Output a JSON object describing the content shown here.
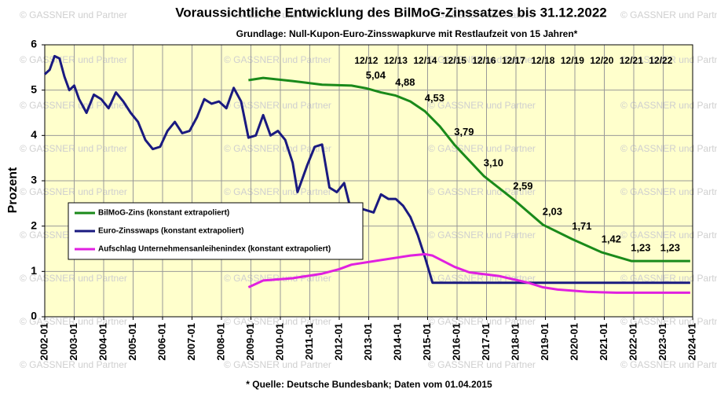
{
  "chart_data": {
    "type": "line",
    "title": "Voraussichtliche Entwicklung des BilMoG-Zinssatzes bis 31.12.2022",
    "subtitle": "Grundlage: Null-Kupon-Euro-Zinsswapkurve mit Restlaufzeit von 15 Jahren*",
    "ylabel": "Prozent",
    "footnote": "* Quelle: Deutsche Bundesbank; Daten vom 01.04.2015",
    "watermark": "© GASSNER und Partner",
    "xlim": [
      "2002-01",
      "2024-01"
    ],
    "xticks": [
      "2002-01",
      "2003-01",
      "2004-01",
      "2005-01",
      "2006-01",
      "2007-01",
      "2008-01",
      "2009-01",
      "2010-01",
      "2011-01",
      "2012-01",
      "2013-01",
      "2014-01",
      "2015-01",
      "2016-01",
      "2017-01",
      "2018-01",
      "2019-01",
      "2020-01",
      "2021-01",
      "2022-01",
      "2023-01",
      "2024-01"
    ],
    "ylim": [
      0,
      6
    ],
    "yticks": [
      0,
      1,
      2,
      3,
      4,
      5,
      6
    ],
    "grid": true,
    "legend": "middle-left",
    "series": [
      {
        "name": "BilMoG-Zins (konstant extrapoliert)",
        "color": "#1a8a1a",
        "x": [
          "2008-12",
          "2009-06",
          "2010-06",
          "2011-06",
          "2012-06",
          "2012-12",
          "2013-06",
          "2013-12",
          "2014-06",
          "2014-12",
          "2015-06",
          "2015-12",
          "2016-12",
          "2017-12",
          "2018-12",
          "2019-12",
          "2020-12",
          "2021-12",
          "2022-12",
          "2023-12"
        ],
        "values": [
          5.22,
          5.27,
          5.2,
          5.12,
          5.1,
          5.04,
          4.95,
          4.88,
          4.75,
          4.53,
          4.2,
          3.79,
          3.1,
          2.59,
          2.03,
          1.71,
          1.42,
          1.23,
          1.23,
          1.23
        ],
        "value_labels": [
          null,
          null,
          null,
          null,
          null,
          "5,04",
          null,
          "4,88",
          null,
          "4,53",
          null,
          "3,79",
          "3,10",
          "2,59",
          "2,03",
          "1,71",
          "1,42",
          "1,23",
          "1,23",
          null
        ]
      },
      {
        "name": "Euro-Zinsswaps (konstant extrapoliert)",
        "color": "#1a1a80",
        "x": [
          "2002-01",
          "2002-03",
          "2002-05",
          "2002-07",
          "2002-09",
          "2002-11",
          "2003-01",
          "2003-03",
          "2003-06",
          "2003-09",
          "2003-12",
          "2004-03",
          "2004-06",
          "2004-09",
          "2004-12",
          "2005-03",
          "2005-06",
          "2005-09",
          "2005-12",
          "2006-03",
          "2006-06",
          "2006-09",
          "2006-12",
          "2007-03",
          "2007-06",
          "2007-09",
          "2007-12",
          "2008-03",
          "2008-06",
          "2008-09",
          "2008-12",
          "2009-03",
          "2009-06",
          "2009-09",
          "2009-12",
          "2010-03",
          "2010-06",
          "2010-08",
          "2010-12",
          "2011-03",
          "2011-06",
          "2011-09",
          "2011-12",
          "2012-03",
          "2012-06",
          "2012-09",
          "2012-12",
          "2013-03",
          "2013-06",
          "2013-09",
          "2013-12",
          "2014-03",
          "2014-06",
          "2014-09",
          "2014-12",
          "2015-03",
          "2023-12"
        ],
        "values": [
          5.35,
          5.45,
          5.75,
          5.7,
          5.3,
          5.0,
          5.1,
          4.8,
          4.5,
          4.9,
          4.8,
          4.6,
          4.95,
          4.75,
          4.5,
          4.3,
          3.9,
          3.7,
          3.75,
          4.1,
          4.3,
          4.05,
          4.1,
          4.4,
          4.8,
          4.7,
          4.75,
          4.6,
          5.05,
          4.75,
          3.95,
          4.0,
          4.45,
          4.0,
          4.1,
          3.9,
          3.4,
          2.75,
          3.35,
          3.75,
          3.8,
          2.85,
          2.75,
          2.95,
          2.3,
          2.4,
          2.35,
          2.3,
          2.7,
          2.6,
          2.6,
          2.45,
          2.2,
          1.8,
          1.3,
          0.75,
          0.75
        ]
      },
      {
        "name": "Aufschlag Unternehmensanleihenindex (konstant extrapoliert)",
        "color": "#e020e0",
        "x": [
          "2008-12",
          "2009-06",
          "2010-06",
          "2011-06",
          "2012-01",
          "2012-06",
          "2013-06",
          "2014-06",
          "2014-12",
          "2015-03",
          "2015-12",
          "2016-06",
          "2017-06",
          "2018-06",
          "2018-12",
          "2019-06",
          "2020-06",
          "2021-06",
          "2023-12"
        ],
        "values": [
          0.65,
          0.8,
          0.85,
          0.95,
          1.05,
          1.15,
          1.25,
          1.35,
          1.38,
          1.35,
          1.1,
          0.98,
          0.9,
          0.75,
          0.65,
          0.6,
          0.55,
          0.53,
          0.53
        ]
      }
    ],
    "annotations": [
      {
        "x": "2012-12",
        "text": "12/12"
      },
      {
        "x": "2013-12",
        "text": "12/13"
      },
      {
        "x": "2014-12",
        "text": "12/14"
      },
      {
        "x": "2015-12",
        "text": "12/15"
      },
      {
        "x": "2016-12",
        "text": "12/16"
      },
      {
        "x": "2017-12",
        "text": "12/17"
      },
      {
        "x": "2018-12",
        "text": "12/18"
      },
      {
        "x": "2019-12",
        "text": "12/19"
      },
      {
        "x": "2020-12",
        "text": "12/20"
      },
      {
        "x": "2021-12",
        "text": "12/21"
      },
      {
        "x": "2022-12",
        "text": "12/22"
      }
    ]
  }
}
